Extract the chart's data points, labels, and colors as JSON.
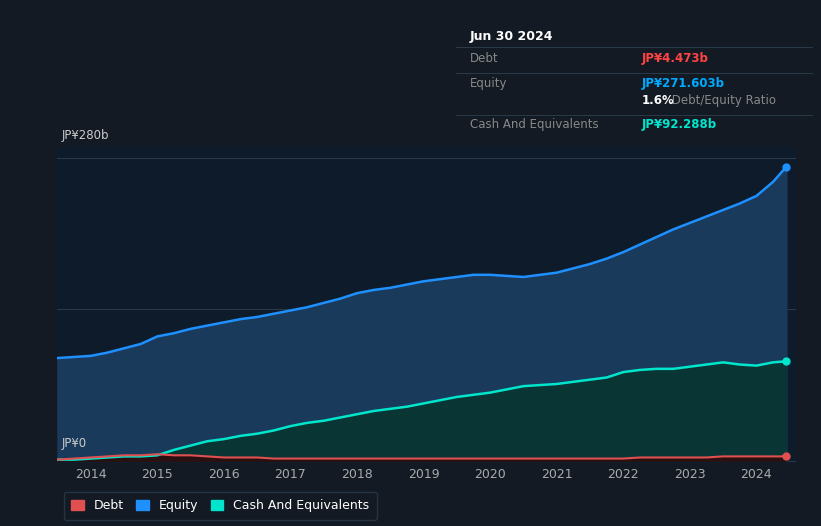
{
  "bg_color": "#131a24",
  "plot_bg_color": "#0d1b2a",
  "title_box": {
    "date": "Jun 30 2024",
    "debt_label": "Debt",
    "debt_value": "JP¥4.473b",
    "debt_color": "#ff4444",
    "equity_label": "Equity",
    "equity_value": "JP¥271.603b",
    "equity_color": "#00aaff",
    "ratio_bold": "1.6%",
    "ratio_text": " Debt/Equity Ratio",
    "ratio_text_color": "#888888",
    "cash_label": "Cash And Equivalents",
    "cash_value": "JP¥92.288b",
    "cash_color": "#00e5cc"
  },
  "y_label_top": "JP¥280b",
  "y_label_bottom": "JP¥0",
  "x_ticks": [
    2014,
    2015,
    2016,
    2017,
    2018,
    2019,
    2020,
    2021,
    2022,
    2023,
    2024
  ],
  "equity_color": "#1e90ff",
  "equity_fill": "#1a3a5c",
  "cash_color": "#00e5cc",
  "cash_fill": "#0a3535",
  "debt_color": "#e05050",
  "debt_fill": "#2a1010",
  "legend_items": [
    {
      "label": "Debt",
      "color": "#e05050"
    },
    {
      "label": "Equity",
      "color": "#1e90ff"
    },
    {
      "label": "Cash And Equivalents",
      "color": "#00e5cc"
    }
  ],
  "equity_data_x": [
    2013.5,
    2013.75,
    2014.0,
    2014.25,
    2014.5,
    2014.75,
    2015.0,
    2015.25,
    2015.5,
    2015.75,
    2016.0,
    2016.25,
    2016.5,
    2016.75,
    2017.0,
    2017.25,
    2017.5,
    2017.75,
    2018.0,
    2018.25,
    2018.5,
    2018.75,
    2019.0,
    2019.25,
    2019.5,
    2019.75,
    2020.0,
    2020.25,
    2020.5,
    2020.75,
    2021.0,
    2021.25,
    2021.5,
    2021.75,
    2022.0,
    2022.25,
    2022.5,
    2022.75,
    2023.0,
    2023.25,
    2023.5,
    2023.75,
    2024.0,
    2024.25,
    2024.45
  ],
  "equity_data_y": [
    95,
    96,
    97,
    100,
    104,
    108,
    115,
    118,
    122,
    125,
    128,
    131,
    133,
    136,
    139,
    142,
    146,
    150,
    155,
    158,
    160,
    163,
    166,
    168,
    170,
    172,
    172,
    171,
    170,
    172,
    174,
    178,
    182,
    187,
    193,
    200,
    207,
    214,
    220,
    226,
    232,
    238,
    245,
    258,
    272
  ],
  "cash_data_x": [
    2013.5,
    2013.75,
    2014.0,
    2014.25,
    2014.5,
    2014.75,
    2015.0,
    2015.25,
    2015.5,
    2015.75,
    2016.0,
    2016.25,
    2016.5,
    2016.75,
    2017.0,
    2017.25,
    2017.5,
    2017.75,
    2018.0,
    2018.25,
    2018.5,
    2018.75,
    2019.0,
    2019.25,
    2019.5,
    2019.75,
    2020.0,
    2020.25,
    2020.5,
    2020.75,
    2021.0,
    2021.25,
    2021.5,
    2021.75,
    2022.0,
    2022.25,
    2022.5,
    2022.75,
    2023.0,
    2023.25,
    2023.5,
    2023.75,
    2024.0,
    2024.25,
    2024.45
  ],
  "cash_data_y": [
    1,
    1,
    2,
    3,
    4,
    4,
    5,
    10,
    14,
    18,
    20,
    23,
    25,
    28,
    32,
    35,
    37,
    40,
    43,
    46,
    48,
    50,
    53,
    56,
    59,
    61,
    63,
    66,
    69,
    70,
    71,
    73,
    75,
    77,
    82,
    84,
    85,
    85,
    87,
    89,
    91,
    89,
    88,
    91,
    92
  ],
  "debt_data_x": [
    2013.5,
    2013.75,
    2014.0,
    2014.25,
    2014.5,
    2014.75,
    2015.0,
    2015.25,
    2015.5,
    2015.75,
    2016.0,
    2016.25,
    2016.5,
    2016.75,
    2017.0,
    2017.25,
    2017.5,
    2017.75,
    2018.0,
    2018.25,
    2018.5,
    2018.75,
    2019.0,
    2019.25,
    2019.5,
    2019.75,
    2020.0,
    2020.25,
    2020.5,
    2020.75,
    2021.0,
    2021.25,
    2021.5,
    2021.75,
    2022.0,
    2022.25,
    2022.5,
    2022.75,
    2023.0,
    2023.25,
    2023.5,
    2023.75,
    2024.0,
    2024.25,
    2024.45
  ],
  "debt_data_y": [
    1,
    2,
    3,
    4,
    5,
    5,
    6,
    5,
    5,
    4,
    3,
    3,
    3,
    2,
    2,
    2,
    2,
    2,
    2,
    2,
    2,
    2,
    2,
    2,
    2,
    2,
    2,
    2,
    2,
    2,
    2,
    2,
    2,
    2,
    2,
    3,
    3,
    3,
    3,
    3,
    4,
    4,
    4,
    4,
    4
  ]
}
